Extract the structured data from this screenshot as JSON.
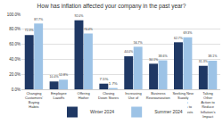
{
  "chart_data": {
    "type": "bar",
    "title": "How has inflation affected your company in the past year?",
    "categories": [
      "Changing Customers' Buying Habits",
      "Employee Layoffs",
      "Offering Higher Wages to Attract or Retain Workers",
      "Closing Down Stores or Offices",
      "Increasing Use of Artificial Intelligence or Automation",
      "Business Reorganization",
      "Seeking New Supply Chain Partners to Lower Costs",
      "Taking Other Action to Reduce Inflation's Impact"
    ],
    "series": [
      {
        "name": "Winter 2024",
        "color": "#1f3864",
        "values": [
          72.3,
          10.4,
          92.0,
          7.5,
          44.0,
          34.1,
          62.7,
          31.3
        ],
        "value_labels": [
          "72.3%",
          "10.4%",
          "92.0%",
          "7.5%",
          "44.0%",
          "34.1%",
          "62.7%",
          "31.3%"
        ]
      },
      {
        "name": "Summer 2024",
        "color": "#9dc3e6",
        "values": [
          87.7,
          12.8,
          74.4,
          1.7,
          56.7,
          38.6,
          69.3,
          38.1
        ],
        "value_labels": [
          "87.7%",
          "12.8%",
          "74.4%",
          "1.7%",
          "56.7%",
          "38.6%",
          "69.3%",
          "38.1%"
        ]
      }
    ],
    "ylim": [
      0,
      100
    ],
    "yticks": [
      {
        "value": 0,
        "label": "0.0%"
      },
      {
        "value": 20,
        "label": "20.0%"
      },
      {
        "value": 40,
        "label": "40.0%"
      },
      {
        "value": 60,
        "label": "60.0%"
      },
      {
        "value": 80,
        "label": "80.0%"
      },
      {
        "value": 100,
        "label": "100.0%"
      }
    ],
    "grid": true,
    "legend": "bottom",
    "data_labels": true
  }
}
